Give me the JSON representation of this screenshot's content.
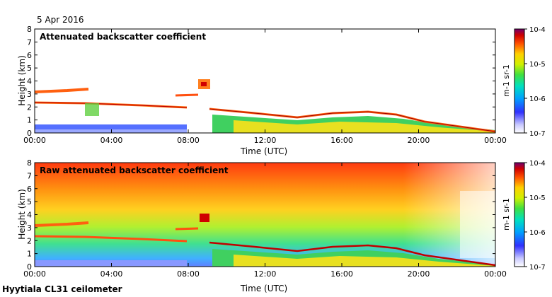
{
  "header": {
    "date": "5 Apr 2016"
  },
  "footer": {
    "site": "Hyytiala CL31 ceilometer"
  },
  "chart_data": [
    {
      "type": "heatmap",
      "title": "Attenuated backscatter coefficient",
      "xlabel": "Time (UTC)",
      "ylabel": "Height (km)",
      "xlim": [
        0,
        24
      ],
      "ylim": [
        0,
        8
      ],
      "x_ticks": [
        "00:00",
        "04:00",
        "08:00",
        "12:00",
        "16:00",
        "20:00",
        "00:00"
      ],
      "y_ticks": [
        "0",
        "1",
        "2",
        "3",
        "4",
        "5",
        "6",
        "7",
        "8"
      ],
      "colorbar": {
        "label": "m-1 sr-1",
        "scale": "log",
        "range": [
          1e-07,
          0.0001
        ],
        "tick_labels": [
          "10-7",
          "10-6",
          "10-5",
          "10-4"
        ]
      },
      "layers": [
        {
          "name": "surface boundary layer",
          "value": "1e-6",
          "start_h": 0.0,
          "end_h": 9.0,
          "base_km": 0.0,
          "top_km": 0.6
        },
        {
          "name": "elevated aerosol layer",
          "value": "1e-5",
          "start_h": 9.0,
          "end_h": 24.0,
          "base_km_start": 0.1,
          "base_km_end": 0.05,
          "top_km_start": 1.6,
          "top_km_end": 0.5
        },
        {
          "name": "cloud layer lower",
          "value": "1e-4",
          "start_h": 0.0,
          "end_h": 8.0,
          "height_km_start": 2.3,
          "height_km_end": 1.9
        },
        {
          "name": "cloud layer upper",
          "value": "1e-4",
          "start_h": 0.0,
          "end_h": 2.5,
          "height_km": 3.1
        },
        {
          "name": "cloud fragment",
          "value": "1e-4",
          "start_h": 7.3,
          "end_h": 8.6,
          "height_km": 2.9
        },
        {
          "name": "cloud patch",
          "value": "1e-4",
          "start_h": 8.4,
          "end_h": 9.2,
          "height_km": 3.6
        },
        {
          "name": "descending cloud base",
          "value": "1e-4",
          "start_h": 9.2,
          "end_h": 24.0,
          "height_km_start": 1.8,
          "height_km_end": 0.3
        }
      ]
    },
    {
      "type": "heatmap",
      "title": "Raw attenuated backscatter coefficient",
      "xlabel": "Time (UTC)",
      "ylabel": "Height (km)",
      "xlim": [
        0,
        24
      ],
      "ylim": [
        0,
        8
      ],
      "x_ticks": [
        "00:00",
        "04:00",
        "08:00",
        "12:00",
        "16:00",
        "20:00",
        "00:00"
      ],
      "y_ticks": [
        "0",
        "1",
        "2",
        "3",
        "4",
        "5",
        "6",
        "7",
        "8"
      ],
      "colorbar": {
        "label": "m-1 sr-1",
        "scale": "log",
        "range": [
          1e-07,
          0.0001
        ],
        "tick_labels": [
          "10-7",
          "10-6",
          "10-5",
          "10-4"
        ]
      },
      "background_noise": "increasing with height, ~1e-5 to 1e-4 above 4 km; lower noise after 20:00 near the surface"
    }
  ]
}
